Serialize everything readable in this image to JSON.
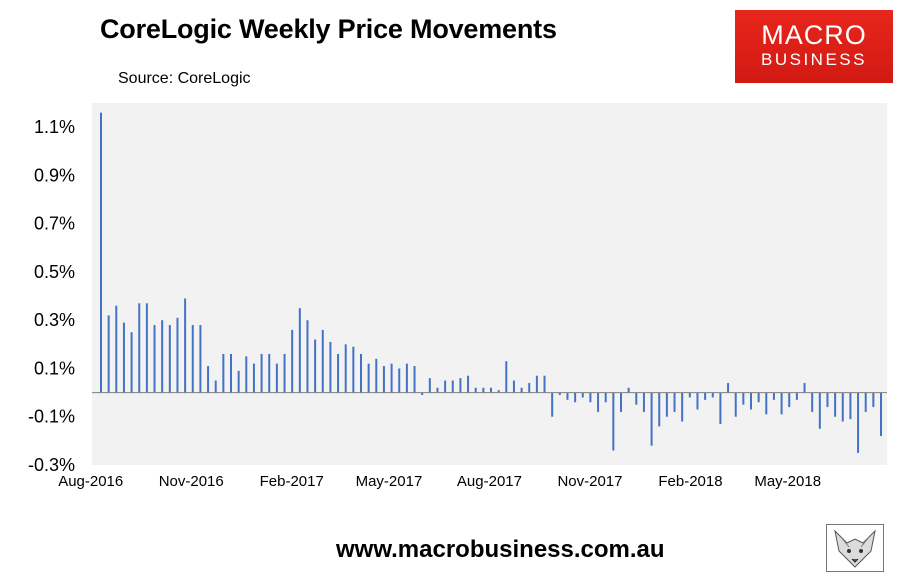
{
  "header": {
    "title": "CoreLogic Weekly Price Movements",
    "source": "Source: CoreLogic"
  },
  "logo": {
    "line1": "MACRO",
    "line2": "BUSINESS",
    "icon": "macrobusiness-logo"
  },
  "footer": {
    "url": "www.macrobusiness.com.au",
    "icon": "fox-icon"
  },
  "colors": {
    "bar": "#4472c4",
    "plot_bg": "#f2f2f2",
    "baseline": "#7f7f7f",
    "logo_red": "#e02419"
  },
  "chart_data": {
    "type": "bar",
    "title": "CoreLogic Weekly Price Movements",
    "xlabel": "",
    "ylabel": "",
    "ylim": [
      -0.3,
      1.2
    ],
    "y_ticks": [
      "1.1%",
      "0.9%",
      "0.7%",
      "0.5%",
      "0.3%",
      "0.1%",
      "-0.1%",
      "-0.3%"
    ],
    "y_tick_values": [
      1.1,
      0.9,
      0.7,
      0.5,
      0.3,
      0.1,
      -0.1,
      -0.3
    ],
    "x_ticks": [
      "Aug-2016",
      "Nov-2016",
      "Feb-2017",
      "May-2017",
      "Aug-2017",
      "Nov-2017",
      "Feb-2018",
      "May-2018"
    ],
    "x_tick_dates": [
      "2016-08-01",
      "2016-11-01",
      "2017-02-01",
      "2017-05-01",
      "2017-08-01",
      "2017-11-01",
      "2018-02-01",
      "2018-05-01"
    ],
    "grid": false,
    "legend": "none",
    "dates": [
      "2016-08-04",
      "2016-08-11",
      "2016-08-18",
      "2016-08-25",
      "2016-09-01",
      "2016-09-08",
      "2016-09-15",
      "2016-09-22",
      "2016-09-29",
      "2016-10-06",
      "2016-10-13",
      "2016-10-20",
      "2016-10-27",
      "2016-11-03",
      "2016-11-10",
      "2016-11-17",
      "2016-11-24",
      "2016-12-01",
      "2016-12-08",
      "2016-12-15",
      "2016-12-22",
      "2016-12-29",
      "2017-01-05",
      "2017-01-12",
      "2017-01-19",
      "2017-01-26",
      "2017-02-02",
      "2017-02-09",
      "2017-02-16",
      "2017-02-23",
      "2017-03-02",
      "2017-03-09",
      "2017-03-16",
      "2017-03-23",
      "2017-03-30",
      "2017-04-06",
      "2017-04-13",
      "2017-04-20",
      "2017-04-27",
      "2017-05-04",
      "2017-05-11",
      "2017-05-18",
      "2017-05-25",
      "2017-06-01",
      "2017-06-08",
      "2017-06-15",
      "2017-06-22",
      "2017-06-29",
      "2017-07-06",
      "2017-07-13",
      "2017-07-20",
      "2017-07-27",
      "2017-08-03",
      "2017-08-10",
      "2017-08-17",
      "2017-08-24",
      "2017-08-31",
      "2017-09-07",
      "2017-09-14",
      "2017-09-21",
      "2017-09-28",
      "2017-10-05",
      "2017-10-12",
      "2017-10-19",
      "2017-10-26",
      "2017-11-02",
      "2017-11-09",
      "2017-11-16",
      "2017-11-23",
      "2017-11-30",
      "2017-12-07",
      "2017-12-14",
      "2017-12-21",
      "2017-12-28",
      "2018-01-04",
      "2018-01-11",
      "2018-01-18",
      "2018-01-25",
      "2018-02-01",
      "2018-02-08",
      "2018-02-15",
      "2018-02-22",
      "2018-03-01",
      "2018-03-08",
      "2018-03-15",
      "2018-03-22",
      "2018-03-29",
      "2018-04-05",
      "2018-04-12",
      "2018-04-19",
      "2018-04-26",
      "2018-05-03",
      "2018-05-10",
      "2018-05-17",
      "2018-05-24",
      "2018-05-31",
      "2018-06-07",
      "2018-06-14",
      "2018-06-21",
      "2018-06-28",
      "2018-07-05",
      "2018-07-12",
      "2018-07-19"
    ],
    "values": [
      1.16,
      0.32,
      0.36,
      0.29,
      0.25,
      0.37,
      0.37,
      0.28,
      0.3,
      0.28,
      0.31,
      0.39,
      0.28,
      0.28,
      0.11,
      0.05,
      0.16,
      0.16,
      0.09,
      0.15,
      0.12,
      0.16,
      0.16,
      0.12,
      0.16,
      0.26,
      0.35,
      0.3,
      0.22,
      0.26,
      0.21,
      0.16,
      0.2,
      0.19,
      0.16,
      0.12,
      0.14,
      0.11,
      0.12,
      0.1,
      0.12,
      0.11,
      -0.01,
      0.06,
      0.02,
      0.05,
      0.05,
      0.06,
      0.07,
      0.02,
      0.02,
      0.02,
      0.01,
      0.13,
      0.05,
      0.02,
      0.04,
      0.07,
      0.07,
      -0.1,
      -0.01,
      -0.03,
      -0.04,
      -0.02,
      -0.04,
      -0.08,
      -0.04,
      -0.24,
      -0.08,
      0.02,
      -0.05,
      -0.08,
      -0.22,
      -0.14,
      -0.1,
      -0.08,
      -0.12,
      -0.02,
      -0.07,
      -0.03,
      -0.02,
      -0.13,
      0.04,
      -0.1,
      -0.05,
      -0.07,
      -0.04,
      -0.09,
      -0.03,
      -0.09,
      -0.06,
      -0.03,
      0.04,
      -0.08,
      -0.15,
      -0.06,
      -0.1,
      -0.12,
      -0.11,
      -0.25,
      -0.08,
      -0.06,
      -0.18
    ]
  }
}
